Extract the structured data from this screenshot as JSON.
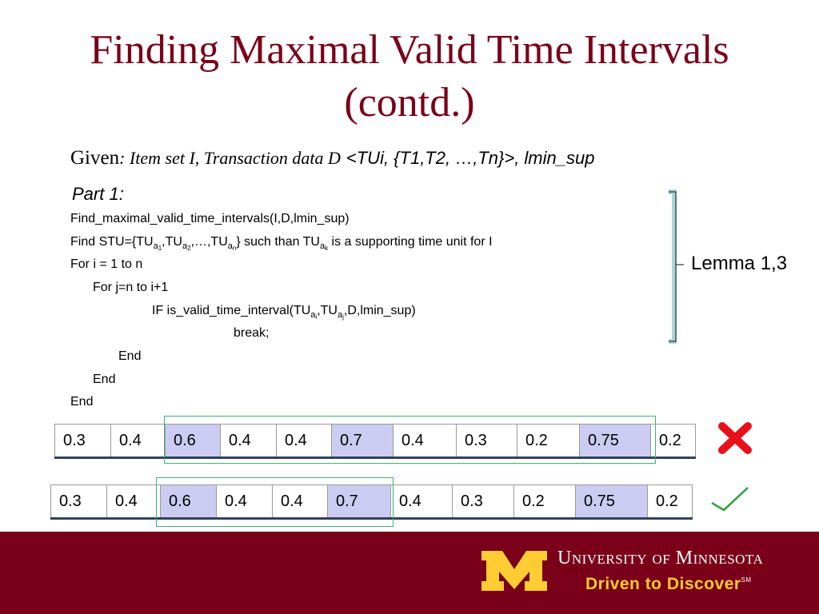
{
  "header": {
    "title": "Finding Maximal Valid Time Intervals (contd.)"
  },
  "given": [
    "Given",
    ": Item set I, Transaction data D",
    "<TUi, {T1,T2, …,Tn}>, lmin_sup"
  ],
  "part": "Part 1:",
  "code": [
    [
      "Find_maximal_valid_time_intervals(I,D,lmin_sup)"
    ],
    [
      "Find STU={TU",
      "a",
      "1",
      ",TU",
      "a",
      "2",
      ",…,TU",
      "a",
      "n",
      "} such than TU",
      "a",
      "k",
      " is a supporting time unit for I"
    ],
    [
      "For i = 1 to n"
    ],
    [
      "For j=n to i+1"
    ],
    [
      "IF is_valid_time_interval(TU",
      "a",
      "i",
      ",TU",
      "a",
      "j",
      ",D,lmin_sup)"
    ],
    [
      "break;"
    ],
    [
      "End"
    ],
    [
      "End"
    ],
    [
      "End"
    ]
  ],
  "lemma": "Lemma 1,3",
  "tables": [
    [
      0.3,
      0.4,
      0.6,
      0.4,
      0.4,
      0.7,
      0.4,
      0.3,
      0.2,
      0.75,
      0.2
    ],
    [
      0.3,
      0.4,
      0.6,
      0.4,
      0.4,
      0.7,
      0.4,
      0.3,
      0.2,
      0.75,
      0.2
    ]
  ],
  "footer": {
    "university": "University of Minnesota",
    "tagline": "Driven to Discover",
    "mark": "SM"
  }
}
